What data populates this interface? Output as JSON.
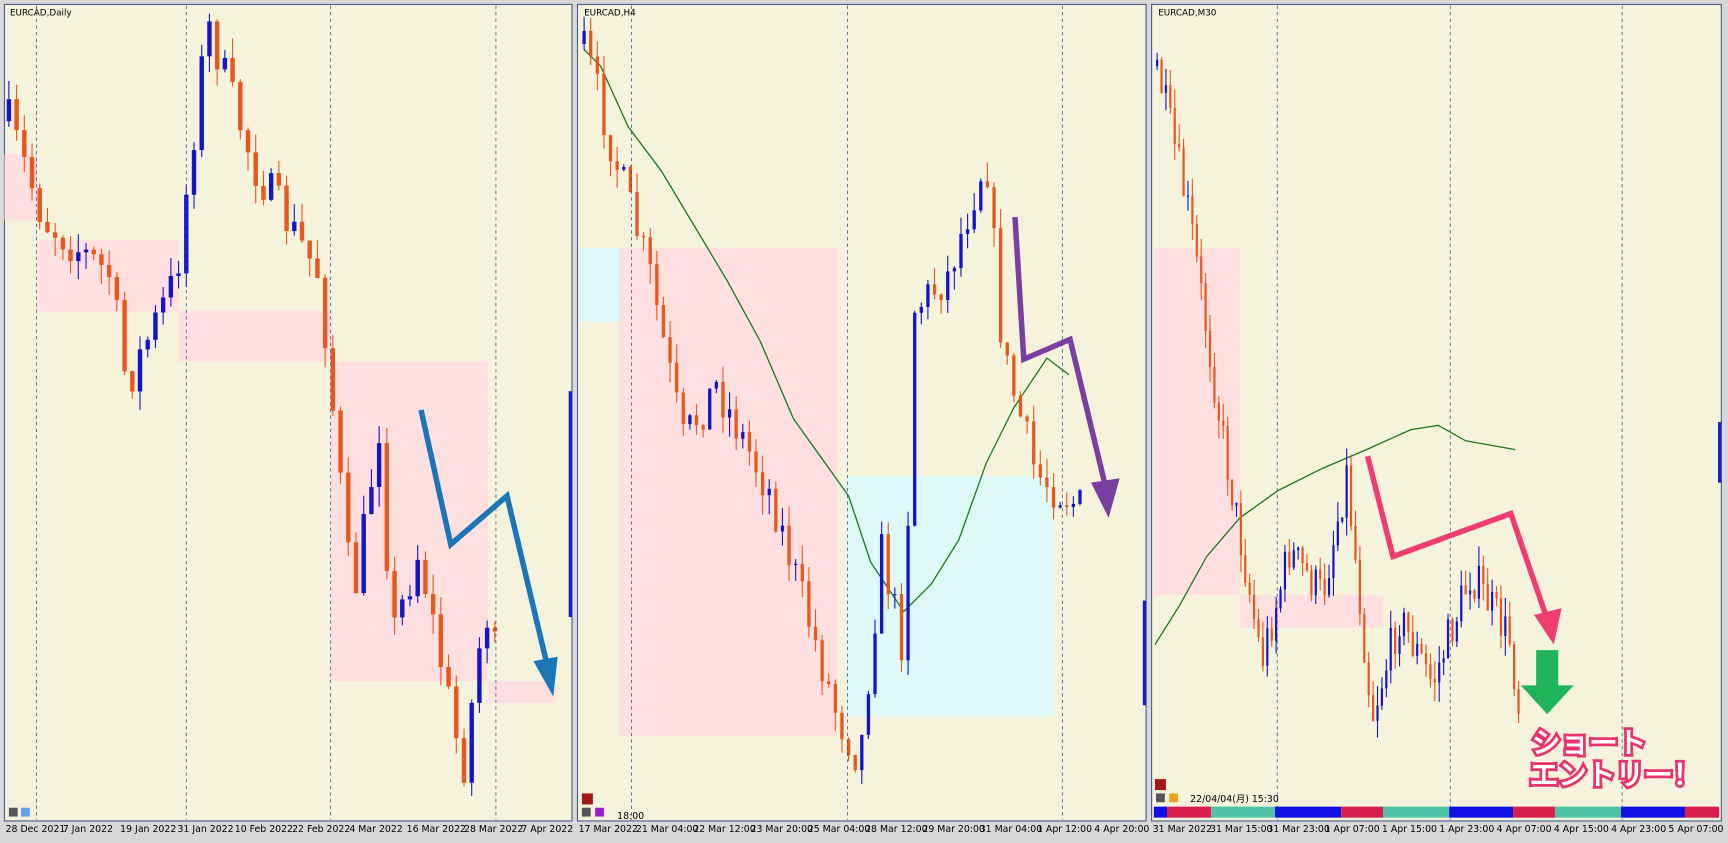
{
  "panels": [
    {
      "title": "EURCAD,Daily",
      "dates": [
        "28 Dec 2021",
        "7 Jan 2022",
        "19 Jan 2022",
        "31 Jan 2022",
        "10 Feb 2022",
        "22 Feb 2022",
        "4 Mar 2022",
        "16 Mar 2022",
        "28 Mar 2022",
        "7 Apr 2022"
      ]
    },
    {
      "title": "EURCAD,H4",
      "time": "18:00",
      "dates": [
        "17 Mar 2022",
        "21 Mar 04:00",
        "22 Mar 12:00",
        "23 Mar 20:00",
        "25 Mar 04:00",
        "28 Mar 12:00",
        "29 Mar 20:00",
        "31 Mar 04:00",
        "1 Apr 12:00",
        "4 Apr 20:00"
      ]
    },
    {
      "title": "EURCAD,M30",
      "time": "22/04/04(月) 15:30",
      "dates": [
        "31 Mar 2022",
        "31 Mar 15:00",
        "31 Mar 23:00",
        "1 Apr 07:00",
        "1 Apr 15:00",
        "1 Apr 23:00",
        "4 Apr 07:00",
        "4 Apr 15:00",
        "4 Apr 23:00",
        "5 Apr 07:00"
      ]
    }
  ],
  "annotation": {
    "line1": "ショート",
    "line2": "エントリー！"
  }
}
